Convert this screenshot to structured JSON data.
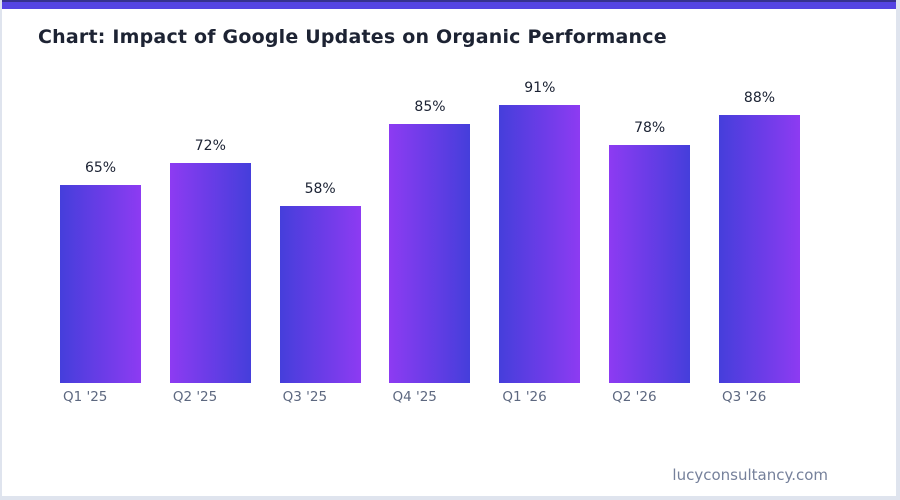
{
  "page": {
    "title": "Chart: Impact of Google Updates on Organic Performance",
    "footer": "lucyconsultancy.com"
  },
  "theme": {
    "background": "#ffffff",
    "accent_bar": "#5544e3",
    "accent_bar_top": "#37318f",
    "edge_color": "#dfe4ee",
    "title_color": "#1d2333",
    "value_label_color": "#1b2233",
    "axis_label_color": "#5d6880",
    "footer_color": "#76819b"
  },
  "chart_data": {
    "type": "bar",
    "title": "Chart: Impact of Google Updates on Organic Performance",
    "categories": [
      "Q1 '25",
      "Q2 '25",
      "Q3 '25",
      "Q4 '25",
      "Q1 '26",
      "Q2 '26",
      "Q3 '26"
    ],
    "values": [
      65,
      72,
      58,
      85,
      91,
      78,
      88
    ],
    "value_labels": [
      "65%",
      "72%",
      "58%",
      "85%",
      "91%",
      "78%",
      "88%"
    ],
    "xlabel": "",
    "ylabel": "",
    "ylim": [
      0,
      100
    ],
    "grid": false,
    "legend": null,
    "bar_color_left": "#453edb",
    "bar_color_right": "#8d3bf2",
    "bar_gradient_note": "horizontal gradient, direction alternates each bar: odd bars blue-to-purple, even bars purple-to-blue"
  }
}
